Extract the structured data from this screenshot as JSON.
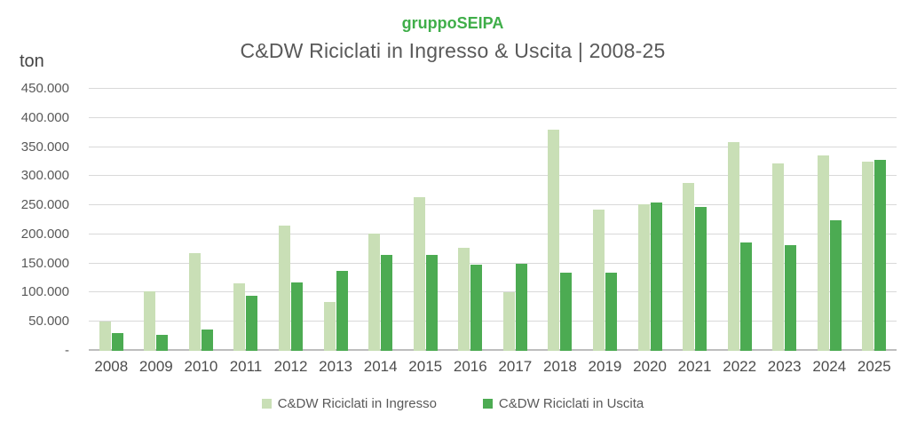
{
  "header": {
    "brand": "gruppoSEIPA",
    "title": "C&DW Riciclati in Ingresso & Uscita | 2008-25"
  },
  "colors": {
    "brand_green": "#3fae49",
    "series_ingresso": "#c9dfb6",
    "series_uscita": "#4cab52",
    "gridline": "#d9d9d9",
    "axis_line": "#bdbdbd",
    "text_gray": "#595959"
  },
  "chart_data": {
    "type": "bar",
    "title": "C&DW Riciclati in Ingresso & Uscita | 2008-25",
    "subtitle_brand": "gruppoSEIPA",
    "xlabel": "",
    "ylabel": "ton",
    "ylim": [
      0,
      450000
    ],
    "ymax": 450000,
    "grid": true,
    "legend_position": "bottom",
    "categories": [
      "2008",
      "2009",
      "2010",
      "2011",
      "2012",
      "2013",
      "2014",
      "2015",
      "2016",
      "2017",
      "2018",
      "2019",
      "2020",
      "2021",
      "2022",
      "2023",
      "2024",
      "2025"
    ],
    "yticks": [
      {
        "label": "450.000",
        "value": 450000
      },
      {
        "label": "400.000",
        "value": 400000
      },
      {
        "label": "350.000",
        "value": 350000
      },
      {
        "label": "300.000",
        "value": 300000
      },
      {
        "label": "250.000",
        "value": 250000
      },
      {
        "label": "200.000",
        "value": 200000
      },
      {
        "label": "150.000",
        "value": 150000
      },
      {
        "label": "100.000",
        "value": 100000
      },
      {
        "label": "50.000",
        "value": 50000
      },
      {
        "label": "-",
        "value": 0
      }
    ],
    "series": [
      {
        "name": "C&DW Riciclati in Ingresso",
        "color": "#c9dfb6",
        "values": [
          50000,
          102000,
          168000,
          116000,
          215000,
          84000,
          202000,
          264000,
          177000,
          100000,
          380000,
          242000,
          251000,
          288000,
          359000,
          322000,
          335000,
          325000
        ]
      },
      {
        "name": "C&DW Riciclati in Uscita",
        "color": "#4cab52",
        "values": [
          30000,
          28000,
          37000,
          95000,
          117000,
          138000,
          165000,
          165000,
          148000,
          150000,
          135000,
          134000,
          255000,
          247000,
          186000,
          182000,
          225000,
          328000
        ]
      }
    ]
  }
}
